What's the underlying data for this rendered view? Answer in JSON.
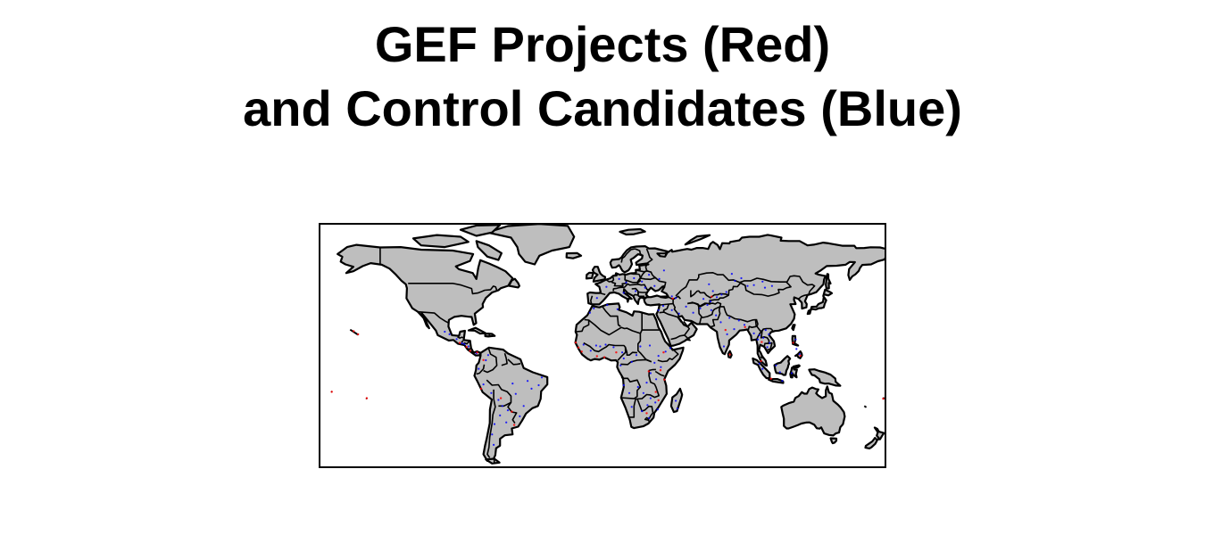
{
  "title": {
    "line1": "GEF Projects (Red)",
    "line2": "and Control Candidates (Blue)"
  },
  "map": {
    "projection": "equirectangular",
    "lon_range": [
      -180,
      180
    ],
    "lat_range": [
      -58,
      84
    ],
    "land_color": "#bebebe",
    "border_color": "#000000",
    "ocean_color": "#ffffff",
    "series": [
      {
        "role": "gef-projects",
        "color": "#ff0000"
      },
      {
        "role": "control-candidates",
        "color": "#0000ff"
      }
    ],
    "gef_projects": [
      [
        -90.5,
        14.5
      ],
      [
        -86.2,
        12.1
      ],
      [
        -84.0,
        9.9
      ],
      [
        -79.5,
        9.0
      ],
      [
        -75.5,
        4.6
      ],
      [
        -77.0,
        -12.0
      ],
      [
        -64.5,
        -17.5
      ],
      [
        -57.5,
        -25.3
      ],
      [
        -56.0,
        -33.0
      ],
      [
        -17.0,
        14.7
      ],
      [
        -15.3,
        11.8
      ],
      [
        -13.2,
        9.5
      ],
      [
        -3.5,
        6.8
      ],
      [
        1.2,
        6.2
      ],
      [
        8.7,
        9.0
      ],
      [
        38.7,
        9.0
      ],
      [
        36.8,
        -1.3
      ],
      [
        39.3,
        -6.8
      ],
      [
        33.8,
        -13.9
      ],
      [
        29.3,
        -1.9
      ],
      [
        28.0,
        -26.2
      ],
      [
        35.5,
        -18.7
      ],
      [
        44.5,
        40.2
      ],
      [
        69.2,
        41.3
      ],
      [
        78.0,
        22.0
      ],
      [
        80.7,
        7.8
      ],
      [
        101.0,
        15.0
      ],
      [
        120.9,
        14.6
      ],
      [
        106.8,
        -6.2
      ],
      [
        -155.0,
        19.5
      ],
      [
        -157.8,
        21.3
      ],
      [
        -149.5,
        -17.5
      ],
      [
        178.0,
        -17.8
      ],
      [
        -171.7,
        -13.8
      ],
      [
        125.5,
        7.1
      ],
      [
        90.4,
        23.7
      ],
      [
        100.5,
        4.0
      ]
    ],
    "control_candidates": [
      [
        -100.0,
        21.0
      ],
      [
        -97.0,
        19.5
      ],
      [
        -92.5,
        16.7
      ],
      [
        -89.0,
        14.3
      ],
      [
        -87.5,
        13.8
      ],
      [
        -85.0,
        12.5
      ],
      [
        -80.0,
        8.5
      ],
      [
        -74.0,
        4.5
      ],
      [
        -72.5,
        7.5
      ],
      [
        -78.5,
        -0.5
      ],
      [
        -75.5,
        -9.5
      ],
      [
        -70.5,
        -14.5
      ],
      [
        -66.0,
        -18.5
      ],
      [
        -63.5,
        -22.0
      ],
      [
        -60.0,
        -24.5
      ],
      [
        -65.0,
        -27.5
      ],
      [
        -61.0,
        -31.5
      ],
      [
        -68.5,
        -32.5
      ],
      [
        -70.0,
        -38.5
      ],
      [
        -69.0,
        -44.5
      ],
      [
        -55.0,
        -15.0
      ],
      [
        -45.0,
        -12.0
      ],
      [
        -50.0,
        -22.0
      ],
      [
        -40.5,
        -10.0
      ],
      [
        -38.5,
        -5.5
      ],
      [
        -47.5,
        -7.5
      ],
      [
        -52.5,
        -28.0
      ],
      [
        -57.0,
        -9.0
      ],
      [
        -8.0,
        32.0
      ],
      [
        -5.5,
        34.5
      ],
      [
        3.0,
        36.5
      ],
      [
        9.5,
        34.0
      ],
      [
        -12.0,
        13.5
      ],
      [
        -4.0,
        13.0
      ],
      [
        -7.5,
        10.0
      ],
      [
        -1.5,
        12.5
      ],
      [
        2.0,
        13.5
      ],
      [
        7.0,
        12.0
      ],
      [
        12.5,
        9.0
      ],
      [
        13.5,
        5.5
      ],
      [
        11.5,
        1.5
      ],
      [
        18.5,
        3.5
      ],
      [
        21.5,
        7.5
      ],
      [
        24.0,
        12.5
      ],
      [
        30.0,
        13.0
      ],
      [
        33.0,
        3.0
      ],
      [
        35.5,
        7.0
      ],
      [
        40.0,
        9.5
      ],
      [
        43.0,
        11.5
      ],
      [
        37.0,
        0.5
      ],
      [
        30.5,
        -3.0
      ],
      [
        34.0,
        -6.5
      ],
      [
        28.0,
        -8.5
      ],
      [
        22.5,
        -11.0
      ],
      [
        26.0,
        -14.5
      ],
      [
        30.5,
        -17.5
      ],
      [
        33.5,
        -20.0
      ],
      [
        35.0,
        -24.0
      ],
      [
        28.5,
        -21.5
      ],
      [
        25.0,
        -25.0
      ],
      [
        29.5,
        -29.0
      ],
      [
        18.5,
        -22.5
      ],
      [
        17.0,
        -14.5
      ],
      [
        13.5,
        -10.0
      ],
      [
        46.5,
        -19.0
      ],
      [
        47.5,
        -23.5
      ],
      [
        20.0,
        52.0
      ],
      [
        25.0,
        50.0
      ],
      [
        15.0,
        49.5
      ],
      [
        10.5,
        51.5
      ],
      [
        2.5,
        47.0
      ],
      [
        -3.5,
        40.5
      ],
      [
        13.5,
        43.5
      ],
      [
        21.0,
        44.5
      ],
      [
        27.0,
        46.5
      ],
      [
        29.5,
        54.0
      ],
      [
        36.0,
        51.5
      ],
      [
        33.0,
        47.5
      ],
      [
        39.0,
        56.5
      ],
      [
        44.0,
        41.5
      ],
      [
        46.5,
        40.5
      ],
      [
        35.5,
        33.5
      ],
      [
        38.5,
        36.0
      ],
      [
        44.0,
        33.5
      ],
      [
        48.5,
        31.5
      ],
      [
        53.0,
        35.5
      ],
      [
        57.5,
        32.0
      ],
      [
        62.0,
        34.5
      ],
      [
        66.5,
        36.5
      ],
      [
        69.0,
        33.5
      ],
      [
        72.0,
        30.5
      ],
      [
        64.0,
        40.0
      ],
      [
        68.5,
        38.5
      ],
      [
        72.5,
        41.0
      ],
      [
        75.5,
        42.5
      ],
      [
        70.0,
        44.5
      ],
      [
        67.5,
        48.5
      ],
      [
        78.5,
        44.0
      ],
      [
        84.0,
        50.5
      ],
      [
        92.0,
        47.5
      ],
      [
        96.0,
        48.0
      ],
      [
        103.0,
        46.5
      ],
      [
        107.5,
        47.5
      ],
      [
        101.5,
        50.0
      ],
      [
        88.0,
        52.0
      ],
      [
        82.0,
        54.5
      ],
      [
        75.0,
        26.5
      ],
      [
        79.0,
        19.5
      ],
      [
        77.0,
        12.5
      ],
      [
        83.5,
        22.5
      ],
      [
        86.5,
        27.5
      ],
      [
        80.5,
        29.0
      ],
      [
        90.0,
        25.0
      ],
      [
        96.0,
        20.0
      ],
      [
        98.5,
        16.5
      ],
      [
        99.5,
        19.0
      ],
      [
        102.0,
        17.5
      ],
      [
        104.5,
        12.0
      ],
      [
        106.0,
        14.5
      ],
      [
        103.5,
        22.0
      ],
      [
        105.5,
        19.5
      ],
      [
        99.5,
        2.5
      ],
      [
        101.5,
        -0.5
      ],
      [
        110.0,
        1.5
      ],
      [
        112.5,
        -2.5
      ],
      [
        114.0,
        -7.5
      ],
      [
        120.0,
        -3.0
      ],
      [
        123.0,
        11.0
      ],
      [
        125.0,
        8.0
      ],
      [
        122.5,
        16.5
      ]
    ]
  }
}
